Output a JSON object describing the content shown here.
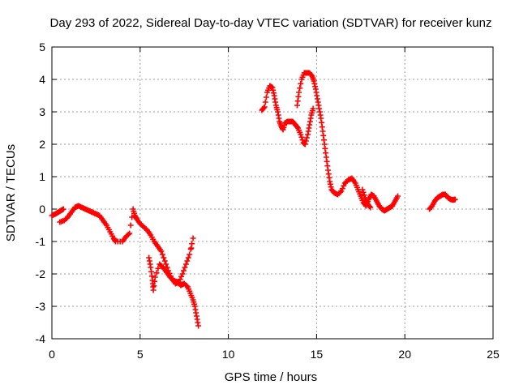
{
  "chart_data": {
    "type": "scatter",
    "title": "Day 293 of 2022, Sidereal Day-to-day VTEC variation (SDTVAR) for receiver kunz",
    "xlabel": "GPS time / hours",
    "ylabel": "SDTVAR / TECUs",
    "xlim": [
      0,
      25
    ],
    "ylim": [
      -4,
      5
    ],
    "xticks": [
      0,
      5,
      10,
      15,
      20,
      25
    ],
    "yticks": [
      -4,
      -3,
      -2,
      -1,
      0,
      1,
      2,
      3,
      4,
      5
    ],
    "grid": true,
    "marker": "plus",
    "color": "#ff0000",
    "series": [
      {
        "points": [
          [
            0.0,
            -0.2
          ],
          [
            0.2,
            -0.15
          ],
          [
            0.35,
            -0.1
          ],
          [
            0.5,
            -0.05
          ],
          [
            0.65,
            0.0
          ],
          [
            0.45,
            -0.4
          ],
          [
            0.7,
            -0.35
          ],
          [
            0.9,
            -0.25
          ],
          [
            1.1,
            -0.1
          ],
          [
            1.3,
            0.05
          ],
          [
            1.5,
            0.1
          ],
          [
            1.7,
            0.05
          ],
          [
            1.9,
            0.0
          ],
          [
            2.1,
            -0.05
          ],
          [
            2.3,
            -0.1
          ],
          [
            2.5,
            -0.15
          ],
          [
            2.7,
            -0.2
          ],
          [
            2.9,
            -0.35
          ],
          [
            3.1,
            -0.5
          ],
          [
            3.3,
            -0.7
          ],
          [
            3.5,
            -0.9
          ],
          [
            3.6,
            -1.0
          ],
          [
            4.0,
            -1.0
          ],
          [
            4.2,
            -0.85
          ],
          [
            4.4,
            -0.75
          ],
          [
            4.6,
            0.0
          ],
          [
            4.7,
            -0.2
          ],
          [
            4.8,
            -0.3
          ],
          [
            5.0,
            -0.45
          ],
          [
            5.2,
            -0.55
          ],
          [
            5.4,
            -0.65
          ],
          [
            5.6,
            -0.8
          ],
          [
            5.8,
            -1.0
          ],
          [
            6.0,
            -1.15
          ],
          [
            6.2,
            -1.3
          ],
          [
            6.4,
            -1.6
          ],
          [
            6.6,
            -1.9
          ],
          [
            6.8,
            -2.15
          ],
          [
            7.0,
            -2.3
          ],
          [
            7.2,
            -2.25
          ],
          [
            7.4,
            -2.0
          ],
          [
            7.6,
            -1.7
          ],
          [
            7.8,
            -1.4
          ],
          [
            8.0,
            -0.9
          ],
          [
            7.9,
            -1.2
          ],
          [
            5.5,
            -1.5
          ],
          [
            5.6,
            -1.8
          ],
          [
            5.7,
            -2.2
          ],
          [
            5.75,
            -2.5
          ],
          [
            5.85,
            -2.1
          ],
          [
            6.1,
            -1.7
          ],
          [
            6.3,
            -1.8
          ],
          [
            6.5,
            -1.95
          ],
          [
            6.7,
            -2.1
          ],
          [
            6.9,
            -2.2
          ],
          [
            7.1,
            -2.25
          ],
          [
            7.3,
            -2.35
          ],
          [
            7.5,
            -2.3
          ],
          [
            7.7,
            -2.4
          ],
          [
            7.85,
            -2.6
          ],
          [
            8.0,
            -2.8
          ],
          [
            8.1,
            -3.0
          ],
          [
            8.2,
            -3.3
          ],
          [
            8.3,
            -3.6
          ]
        ]
      },
      {
        "points": [
          [
            11.9,
            3.05
          ],
          [
            12.05,
            3.15
          ],
          [
            12.2,
            3.6
          ],
          [
            12.35,
            3.8
          ],
          [
            12.5,
            3.75
          ],
          [
            12.6,
            3.5
          ],
          [
            12.7,
            3.2
          ],
          [
            12.8,
            3.0
          ],
          [
            12.9,
            2.7
          ],
          [
            13.0,
            2.55
          ],
          [
            13.1,
            2.45
          ],
          [
            13.2,
            2.65
          ],
          [
            13.35,
            2.7
          ],
          [
            13.5,
            2.7
          ],
          [
            13.65,
            2.7
          ],
          [
            13.8,
            2.6
          ],
          [
            13.95,
            2.5
          ],
          [
            14.1,
            2.3
          ],
          [
            14.25,
            2.05
          ],
          [
            14.35,
            2.0
          ],
          [
            14.5,
            2.3
          ],
          [
            14.6,
            2.6
          ],
          [
            14.7,
            2.9
          ],
          [
            14.8,
            3.1
          ],
          [
            13.9,
            3.2
          ],
          [
            14.0,
            3.6
          ],
          [
            14.15,
            4.0
          ],
          [
            14.3,
            4.2
          ],
          [
            14.45,
            4.2
          ],
          [
            14.6,
            4.2
          ],
          [
            14.75,
            4.1
          ],
          [
            14.85,
            3.95
          ],
          [
            14.95,
            3.7
          ],
          [
            15.05,
            3.4
          ],
          [
            15.15,
            3.1
          ],
          [
            15.25,
            2.8
          ],
          [
            15.35,
            2.4
          ],
          [
            15.45,
            2.0
          ],
          [
            15.55,
            1.6
          ],
          [
            15.65,
            1.2
          ],
          [
            15.75,
            0.85
          ],
          [
            15.85,
            0.6
          ],
          [
            16.0,
            0.5
          ],
          [
            16.2,
            0.45
          ],
          [
            16.4,
            0.55
          ],
          [
            16.6,
            0.8
          ],
          [
            16.8,
            0.9
          ],
          [
            17.0,
            0.95
          ],
          [
            17.2,
            0.8
          ],
          [
            17.35,
            0.6
          ],
          [
            17.5,
            0.4
          ],
          [
            17.65,
            0.2
          ],
          [
            17.8,
            0.1
          ],
          [
            17.95,
            0.3
          ],
          [
            18.1,
            0.45
          ],
          [
            18.25,
            0.4
          ],
          [
            18.4,
            0.25
          ],
          [
            18.55,
            0.1
          ],
          [
            18.7,
            0.0
          ],
          [
            18.85,
            -0.05
          ],
          [
            19.0,
            0.0
          ],
          [
            19.15,
            0.05
          ],
          [
            19.3,
            0.1
          ],
          [
            19.45,
            0.25
          ],
          [
            19.6,
            0.4
          ],
          [
            17.6,
            0.6
          ],
          [
            17.75,
            0.35
          ],
          [
            17.9,
            0.15
          ],
          [
            18.05,
            0.05
          ]
        ]
      },
      {
        "points": [
          [
            21.4,
            0.0
          ],
          [
            21.55,
            0.1
          ],
          [
            21.7,
            0.25
          ],
          [
            21.85,
            0.35
          ],
          [
            22.0,
            0.4
          ],
          [
            22.15,
            0.45
          ],
          [
            22.3,
            0.45
          ],
          [
            22.45,
            0.35
          ],
          [
            22.6,
            0.3
          ],
          [
            22.75,
            0.28
          ],
          [
            22.85,
            0.3
          ]
        ]
      }
    ]
  }
}
